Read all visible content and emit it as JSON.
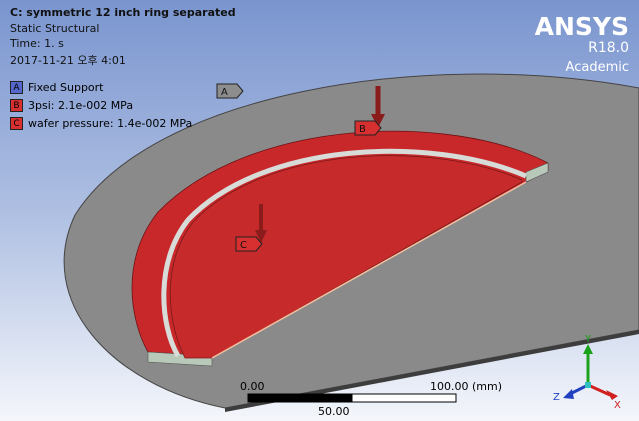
{
  "header": {
    "title": "C: symmetric 12 inch ring separated",
    "analysis": "Static Structural",
    "time": "Time: 1. s",
    "date": "2017-11-21 오후 4:01"
  },
  "legend": {
    "items": [
      {
        "letter": "A",
        "text": "Fixed Support"
      },
      {
        "letter": "B",
        "text": "3psi: 2.1e-002 MPa"
      },
      {
        "letter": "C",
        "text": "wafer pressure: 1.4e-002 MPa"
      }
    ]
  },
  "brand": {
    "name": "ANSYS",
    "version": "R18.0",
    "edition": "Academic"
  },
  "scale": {
    "start": "0.00",
    "end": "100.00 (mm)",
    "middle": "50.00"
  },
  "triad": {
    "x": "X",
    "y": "Y",
    "z": "Z"
  }
}
